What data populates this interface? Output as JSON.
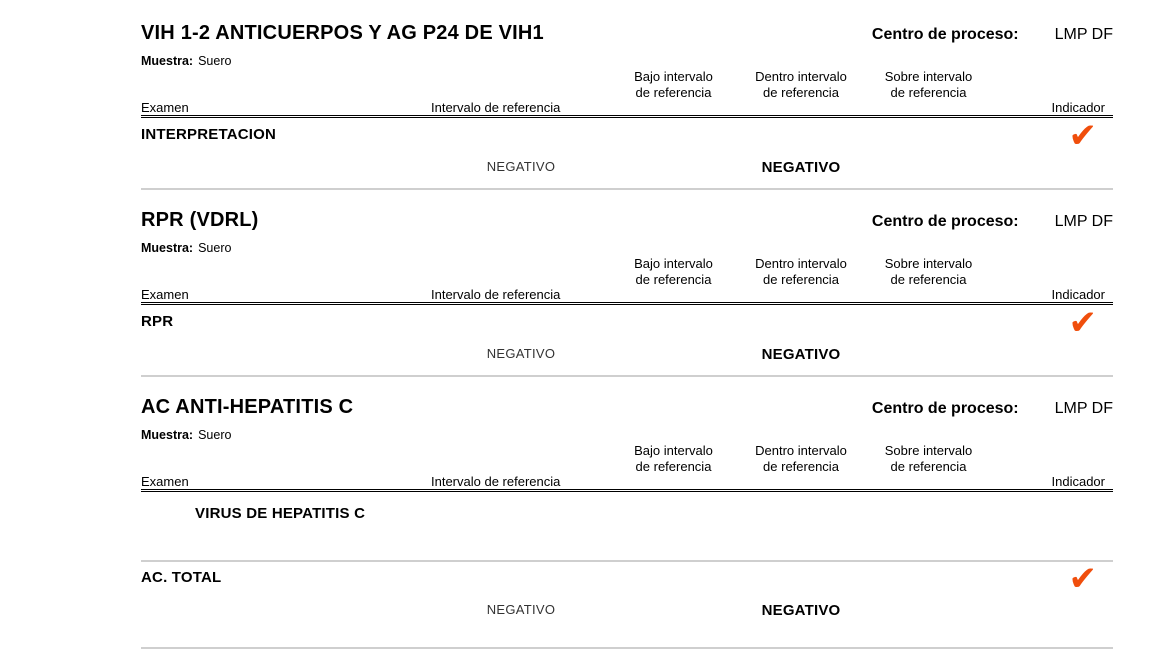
{
  "colors": {
    "check": "#F04E0C",
    "row_separator": "#cfcfcf",
    "header_rule": "#000000",
    "muted_value": "#333333",
    "background": "#ffffff"
  },
  "icons": {
    "check": "✔"
  },
  "columns": {
    "examen": "Examen",
    "intervalo": "Intervalo de referencia",
    "bajo_line1": "Bajo intervalo",
    "bajo_line2": "de referencia",
    "dentro_line1": "Dentro intervalo",
    "dentro_line2": "de referencia",
    "sobre_line1": "Sobre intervalo",
    "sobre_line2": "de referencia",
    "indicador": "Indicador"
  },
  "sections": [
    {
      "title": "VIH 1-2 ANTICUERPOS Y AG P24 DE VIH1",
      "centro_label": "Centro de proceso:",
      "centro_value": "LMP DF",
      "muestra_label": "Muestra:",
      "muestra_value": "Suero",
      "rows": [
        {
          "name": "INTERPRETACION",
          "intervalo_value": "NEGATIVO",
          "dentro_value": "NEGATIVO",
          "indicator": "check"
        }
      ]
    },
    {
      "title": "RPR (VDRL)",
      "centro_label": "Centro de proceso:",
      "centro_value": "LMP DF",
      "muestra_label": "Muestra:",
      "muestra_value": "Suero",
      "rows": [
        {
          "name": "RPR",
          "intervalo_value": "NEGATIVO",
          "dentro_value": "NEGATIVO",
          "indicator": "check"
        }
      ]
    },
    {
      "title": "AC ANTI-HEPATITIS C",
      "centro_label": "Centro de proceso:",
      "centro_value": "LMP DF",
      "muestra_label": "Muestra:",
      "muestra_value": "Suero",
      "group_row": {
        "name": "VIRUS DE HEPATITIS C"
      },
      "rows": [
        {
          "name": "AC. TOTAL",
          "intervalo_value": "NEGATIVO",
          "dentro_value": "NEGATIVO",
          "indicator": "check"
        }
      ]
    }
  ]
}
